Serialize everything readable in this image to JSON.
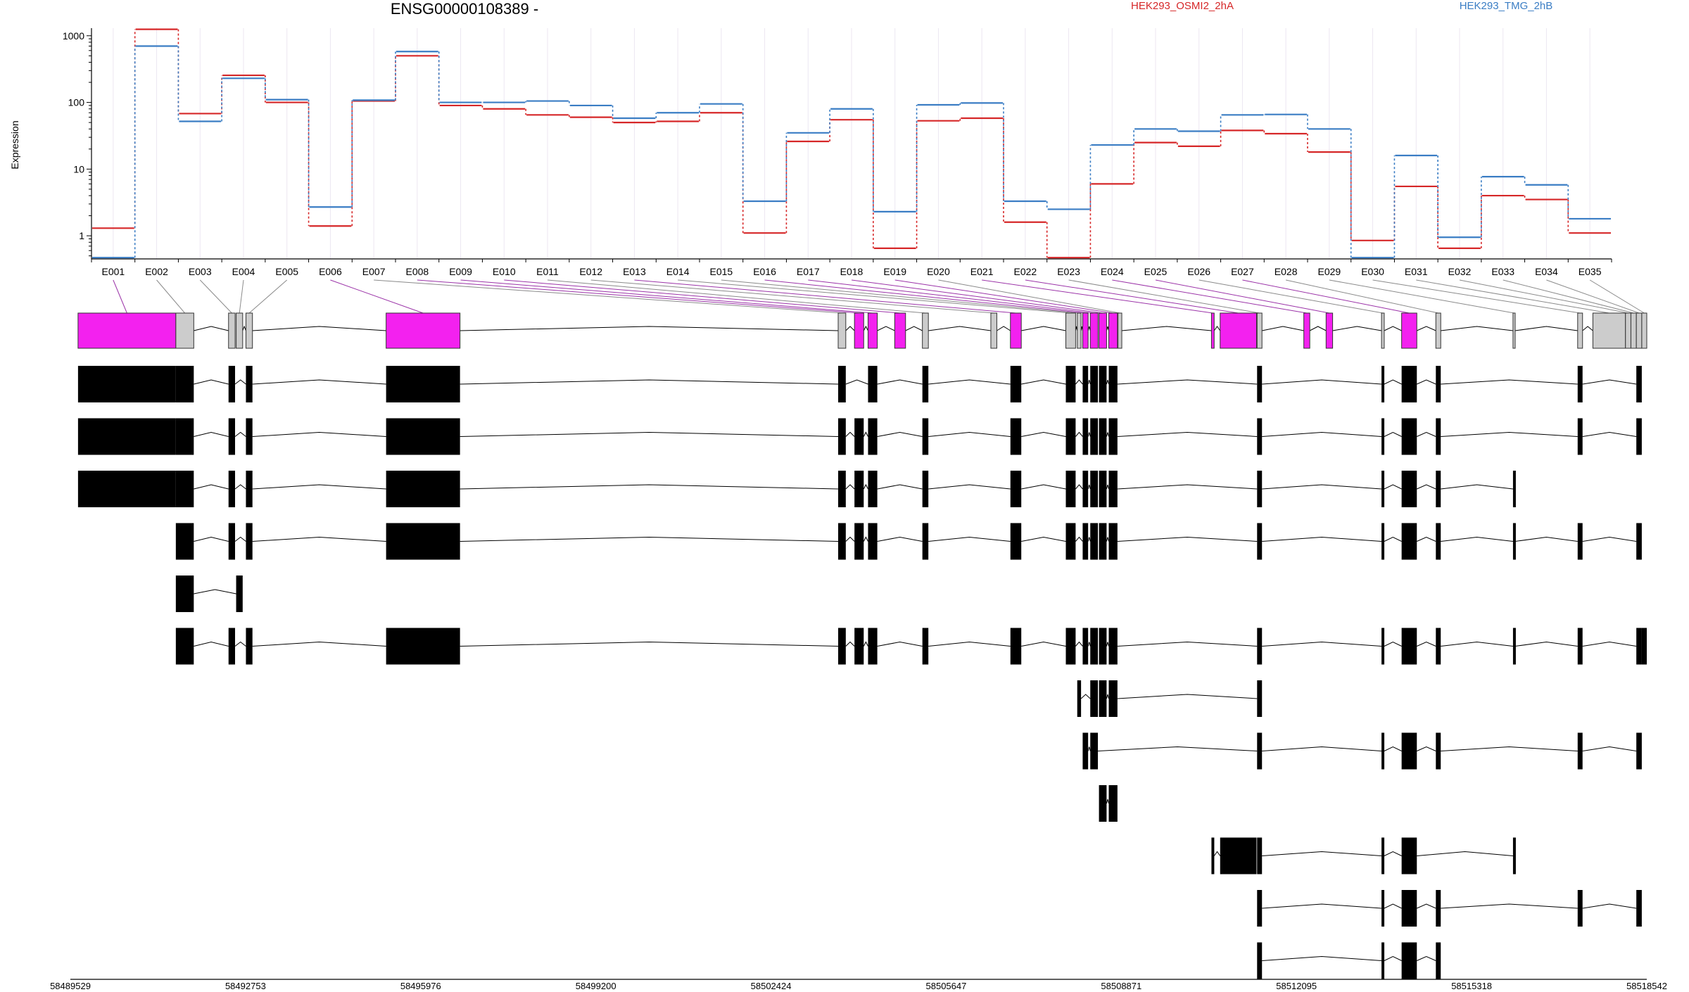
{
  "chart_data": {
    "type": "line",
    "title": "ENSG00000108389 -",
    "ylabel": "Expression",
    "yscale": "log",
    "ylim": [
      0.45,
      1300
    ],
    "yticks": [
      1,
      10,
      100,
      1000
    ],
    "ytick_labels": [
      "1",
      "10",
      "100",
      "1000"
    ],
    "exon_labels": [
      "E001",
      "E002",
      "E003",
      "E004",
      "E005",
      "E006",
      "E007",
      "E008",
      "E009",
      "E010",
      "E011",
      "E012",
      "E013",
      "E014",
      "E015",
      "E016",
      "E017",
      "E018",
      "E019",
      "E020",
      "E021",
      "E022",
      "E023",
      "E024",
      "E025",
      "E026",
      "E027",
      "E028",
      "E029",
      "E030",
      "E031",
      "E032",
      "E033",
      "E034",
      "E035"
    ],
    "series": [
      {
        "name": "HEK293_OSMI2_2hA",
        "color": "#d62728",
        "values": [
          1.3,
          1250,
          68,
          255,
          100,
          1.4,
          105,
          500,
          90,
          80,
          65,
          60,
          50,
          52,
          70,
          1.1,
          26,
          55,
          0.65,
          53,
          58,
          1.6,
          0.47,
          6,
          25,
          22,
          38,
          34,
          18,
          0.85,
          5.5,
          0.65,
          4,
          3.5,
          1.1
        ]
      },
      {
        "name": "HEK293_TMG_2hB",
        "color": "#3a7dc4",
        "values": [
          0.47,
          700,
          52,
          230,
          110,
          2.7,
          108,
          580,
          100,
          100,
          105,
          90,
          58,
          70,
          95,
          3.3,
          35,
          80,
          2.3,
          92,
          98,
          3.3,
          2.5,
          23,
          40,
          37,
          65,
          66,
          40,
          0.47,
          16,
          0.95,
          7.7,
          5.8,
          1.8
        ]
      }
    ],
    "genome_ticks": [
      "58489529",
      "58492753",
      "58495976",
      "58499200",
      "58502424",
      "58505647",
      "58508871",
      "58512095",
      "58515318",
      "58518542"
    ],
    "exon_colors": {
      "expressed": "#f321ef",
      "neutral": "#cccccc",
      "transcript": "#000000"
    }
  },
  "labels": {
    "title": "ENSG00000108389 -",
    "series_a": "HEK293_OSMI2_2hA",
    "series_b": "HEK293_TMG_2hB",
    "ylabel": "Expression"
  }
}
